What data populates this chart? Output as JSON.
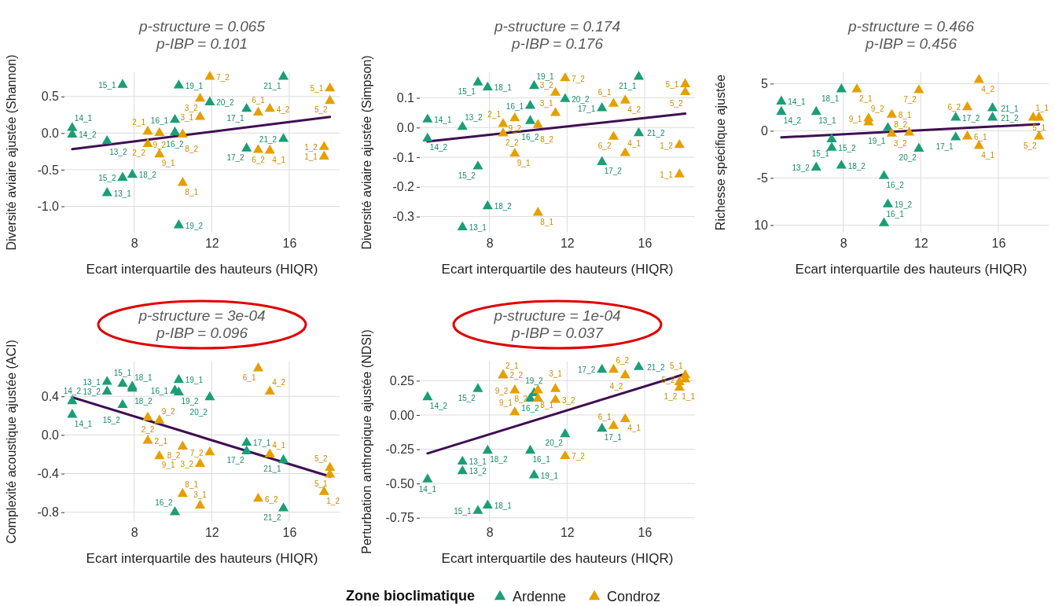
{
  "chart_data": [
    {
      "type": "scatter",
      "title": "p-structure = 0.065",
      "subtitle": "p-IBP = 0.101",
      "xlabel": "Ecart interquartile des hauteurs (HIQR)",
      "ylabel": "Diversité aviaire ajustée (Shannon)",
      "legend_title": "Zone bioclimatique",
      "legend": "bottom",
      "xlim": [
        4.4,
        18.6
      ],
      "ylim": [
        -1.36,
        0.83
      ],
      "xticks": [
        8,
        12,
        16
      ],
      "yticks": [
        {
          "value": -1,
          "label": "-1.0"
        },
        -0.5,
        {
          "value": 0,
          "label": "0.0"
        },
        0.5
      ],
      "grid": true,
      "marker": "triangle",
      "series": [
        {
          "name": "Ardenne",
          "color": "#1b9e77",
          "x": [
            6.6,
            6.6,
            4.8,
            4.8,
            7.4,
            7.4,
            10.1,
            10.1,
            13.8,
            13.8,
            7.9,
            10.3,
            10.3,
            11.9,
            15.7,
            15.7
          ],
          "values": [
            -0.82,
            -0.11,
            0.07,
            -0.02,
            0.66,
            -0.61,
            0.18,
            0.01,
            0.33,
            -0.21,
            -0.57,
            0.65,
            -1.26,
            0.42,
            0.77,
            -0.08
          ],
          "value_labels": [
            "13_1",
            "13_2",
            "14_1",
            "14_2",
            "15_1",
            "15_2",
            "16_1",
            "16_2",
            "17_1",
            "17_2",
            "18_2",
            "19_1",
            "19_2",
            "20_2",
            "21_1",
            "21_2"
          ]
        },
        {
          "name": "Condroz",
          "color": "#e69f00",
          "x": [
            17.8,
            17.8,
            8.7,
            8.7,
            11.4,
            11.4,
            15.0,
            15.0,
            18.1,
            18.1,
            14.4,
            14.4,
            11.9,
            10.5,
            10.5,
            9.3,
            9.3
          ],
          "values": [
            -0.32,
            -0.19,
            0.02,
            -0.15,
            0.22,
            0.47,
            -0.24,
            0.33,
            0.61,
            0.44,
            0.28,
            -0.23,
            0.77,
            -0.68,
            -0.02,
            -0.29,
            0.0
          ],
          "value_labels": [
            "1_1",
            "1_2",
            "2_1",
            "2_2",
            "3_1",
            "3_2",
            "4_1",
            "4_2",
            "5_1",
            "5_2",
            "6_1",
            "6_2",
            "7_2",
            "8_1",
            "8_2",
            "9_1",
            "9_2"
          ]
        },
        {
          "type": "line",
          "color": "#3f0f52",
          "x": [
            4.8,
            18.1
          ],
          "values": [
            -0.22,
            0.22
          ],
          "marker": "none"
        }
      ]
    },
    {
      "type": "scatter",
      "title": "p-structure = 0.174",
      "subtitle": "p-IBP = 0.176",
      "xlabel": "Ecart interquartile des hauteurs (HIQR)",
      "ylabel": "Diversité aviaire ajustée (Simpson)",
      "xlim": [
        4.4,
        18.6
      ],
      "ylim": [
        -0.354,
        0.186
      ],
      "xticks": [
        8,
        12,
        16
      ],
      "yticks": [
        -0.3,
        -0.2,
        -0.1,
        {
          "value": 0,
          "label": "0.0"
        },
        0.1
      ],
      "grid": true,
      "marker": "triangle",
      "series": [
        {
          "name": "Ardenne",
          "color": "#1b9e77",
          "x": [
            6.6,
            6.6,
            4.8,
            4.8,
            7.4,
            7.4,
            10.1,
            10.1,
            13.8,
            13.8,
            7.9,
            7.9,
            10.3,
            11.9,
            15.7,
            15.7
          ],
          "values": [
            -0.336,
            0.002,
            0.027,
            -0.037,
            0.152,
            -0.131,
            0.073,
            0.022,
            0.065,
            -0.116,
            0.135,
            -0.265,
            0.14,
            0.096,
            0.171,
            -0.019
          ],
          "value_labels": [
            "13_1",
            "13_2",
            "14_1",
            "14_2",
            "15_1",
            "15_2",
            "16_1",
            "16_2",
            "17_1",
            "17_2",
            "18_1",
            "18_2",
            "19_1",
            "20_2",
            "21_1",
            "21_2"
          ]
        },
        {
          "name": "Condroz",
          "color": "#e69f00",
          "x": [
            17.8,
            17.8,
            8.7,
            8.7,
            11.4,
            11.4,
            15.0,
            15.0,
            18.1,
            18.1,
            14.4,
            14.4,
            11.9,
            10.5,
            10.5,
            9.3,
            9.3
          ],
          "values": [
            -0.158,
            -0.059,
            0.012,
            -0.02,
            0.049,
            0.117,
            -0.086,
            0.091,
            0.146,
            0.119,
            0.08,
            -0.031,
            0.166,
            -0.287,
            0.009,
            -0.088,
            0.031
          ],
          "value_labels": [
            "1_1",
            "1_2",
            "2_1",
            "2_2",
            "3_1",
            "3_2",
            "4_1",
            "4_2",
            "5_1",
            "5_2",
            "6_1",
            "6_2",
            "7_2",
            "8_1",
            "8_2",
            "9_1",
            "9_2"
          ]
        },
        {
          "type": "line",
          "color": "#3f0f52",
          "x": [
            4.8,
            18.1
          ],
          "values": [
            -0.047,
            0.047
          ],
          "marker": "none"
        }
      ]
    },
    {
      "type": "scatter",
      "title": "p-structure = 0.466",
      "subtitle": "p-IBP = 0.456",
      "xlabel": "Ecart interquartile des hauteurs (HIQR)",
      "ylabel": "Richesse spécifique ajustée",
      "xlim": [
        4.4,
        18.6
      ],
      "ylim": [
        -10.8,
        6.2
      ],
      "xticks": [
        8,
        12,
        16
      ],
      "yticks": [
        {
          "value": -10,
          "label": "10"
        },
        -5,
        0,
        5
      ],
      "grid": true,
      "marker": "triangle",
      "series": [
        {
          "name": "Ardenne",
          "color": "#1b9e77",
          "x": [
            6.6,
            6.6,
            4.8,
            4.8,
            7.4,
            7.4,
            10.1,
            10.1,
            13.8,
            13.8,
            7.9,
            7.9,
            10.3,
            10.3,
            11.9,
            15.7,
            15.7
          ],
          "values": [
            2.0,
            -3.9,
            3.1,
            2.0,
            -0.9,
            -1.8,
            -9.8,
            -4.8,
            -0.7,
            1.4,
            4.4,
            -3.7,
            0.3,
            -7.8,
            -1.9,
            2.4,
            1.4
          ],
          "value_labels": [
            "13_1",
            "13_2",
            "14_1",
            "14_2",
            "15_1",
            "15_2",
            "16_1",
            "16_2",
            "17_1",
            "17_2",
            "18_1",
            "18_2",
            "19_1",
            "19_2",
            "20_2",
            "21_1",
            "21_2"
          ]
        },
        {
          "name": "Condroz",
          "color": "#e69f00",
          "x": [
            17.8,
            8.7,
            11.4,
            15.0,
            15.0,
            18.1,
            18.1,
            14.4,
            14.4,
            11.9,
            10.5,
            10.5,
            9.3,
            9.3
          ],
          "values": [
            1.4,
            4.4,
            -0.2,
            -1.6,
            5.4,
            1.4,
            -0.6,
            -0.6,
            2.5,
            4.3,
            1.7,
            -0.3,
            1.3,
            0.9
          ],
          "value_labels": [
            "1_1",
            "2_1",
            "3_2",
            "4_1",
            "4_2",
            "5_1",
            "5_2",
            "6_1",
            "6_2",
            "7_2",
            "8_1",
            "8_2",
            "9_1",
            "9_2"
          ]
        },
        {
          "type": "line",
          "color": "#3f0f52",
          "x": [
            4.8,
            18.1
          ],
          "values": [
            -0.7,
            0.7
          ],
          "marker": "none"
        }
      ]
    },
    {
      "type": "scatter",
      "title": "p-structure = 3e-04",
      "subtitle": "p-IBP = 0.096",
      "xlabel": "Ecart interquartile des hauteurs (HIQR)",
      "ylabel": "Complexité acoustique ajustée (ACI)",
      "xlim": [
        4.4,
        18.6
      ],
      "ylim": [
        -0.9,
        0.76
      ],
      "xticks": [
        8,
        12,
        16
      ],
      "yticks": [
        -0.8,
        -0.4,
        {
          "value": 0,
          "label": "0.0"
        },
        0.4
      ],
      "grid": true,
      "marker": "triangle",
      "series": [
        {
          "name": "Ardenne",
          "color": "#1b9e77",
          "x": [
            6.6,
            6.6,
            4.8,
            4.8,
            7.4,
            7.4,
            10.1,
            10.1,
            13.8,
            13.8,
            7.9,
            7.9,
            10.3,
            10.3,
            11.9,
            15.7,
            15.7
          ],
          "values": [
            0.55,
            0.45,
            0.21,
            0.35,
            0.53,
            0.31,
            0.46,
            -0.8,
            -0.08,
            -0.17,
            0.48,
            0.5,
            0.57,
            0.44,
            0.39,
            -0.26,
            -0.76
          ],
          "value_labels": [
            "13_1",
            "13_2",
            "14_1",
            "14_2",
            "15_1",
            "15_2",
            "16_1",
            "16_2",
            "17_1",
            "17_2",
            "18_1",
            "18_2",
            "19_1",
            "19_2",
            "20_2",
            "21_1",
            "21_2"
          ]
        },
        {
          "name": "Condroz",
          "color": "#e69f00",
          "x": [
            17.8,
            8.7,
            8.7,
            11.4,
            11.4,
            15.0,
            15.0,
            18.1,
            18.1,
            14.4,
            14.4,
            11.9,
            10.5,
            10.5,
            9.3,
            9.3
          ],
          "values": [
            -0.59,
            -0.06,
            0.18,
            -0.73,
            -0.3,
            -0.2,
            0.45,
            -0.41,
            -0.34,
            0.69,
            -0.66,
            -0.18,
            -0.61,
            -0.12,
            -0.22,
            0.15
          ],
          "value_labels": [
            "1_2",
            "2_1",
            "2_2",
            "3_1",
            "3_2",
            "4_1",
            "4_2",
            "5_1",
            "5_2",
            "6_1",
            "6_2",
            "7_2",
            "8_1",
            "8_2",
            "9_1",
            "9_2"
          ]
        },
        {
          "type": "line",
          "color": "#3f0f52",
          "x": [
            4.8,
            18.1
          ],
          "values": [
            0.39,
            -0.43
          ],
          "marker": "none"
        }
      ]
    },
    {
      "type": "scatter",
      "title": "p-structure = 1e-04",
      "subtitle": "p-IBP = 0.037",
      "xlabel": "Ecart interquartile des hauteurs (HIQR)",
      "ylabel": "Perturbation anthropique ajustée (NDSI)",
      "xlim": [
        4.4,
        18.6
      ],
      "ylim": [
        -0.78,
        0.39
      ],
      "xticks": [
        8,
        12,
        16
      ],
      "yticks": [
        -0.75,
        {
          "value": -0.5,
          "label": "-0.50"
        },
        -0.25,
        {
          "value": 0,
          "label": "0.00"
        },
        0.25
      ],
      "grid": true,
      "marker": "triangle",
      "series": [
        {
          "name": "Ardenne",
          "color": "#1b9e77",
          "x": [
            6.6,
            6.6,
            4.8,
            4.8,
            7.4,
            7.4,
            10.1,
            10.1,
            13.8,
            13.8,
            7.9,
            7.9,
            10.3,
            10.3,
            11.9,
            15.7
          ],
          "values": [
            -0.34,
            -0.41,
            -0.47,
            0.13,
            -0.7,
            0.19,
            -0.26,
            0.12,
            -0.1,
            0.33,
            -0.66,
            -0.26,
            -0.44,
            0.16,
            -0.14,
            0.35
          ],
          "value_labels": [
            "13_1",
            "13_2",
            "14_1",
            "14_2",
            "15_1",
            "15_2",
            "16_1",
            "16_2",
            "17_1",
            "17_2",
            "18_1",
            "18_2",
            "19_1",
            "19_2",
            "20_2",
            "21_2"
          ]
        },
        {
          "name": "Condroz",
          "color": "#e69f00",
          "x": [
            17.8,
            17.8,
            8.7,
            8.7,
            11.4,
            11.4,
            15.0,
            15.0,
            18.1,
            18.1,
            14.4,
            14.4,
            11.9,
            10.5,
            10.5,
            9.3,
            9.3
          ],
          "values": [
            0.2,
            0.24,
            0.29,
            0.29,
            0.19,
            0.11,
            -0.03,
            0.29,
            0.29,
            0.26,
            -0.08,
            0.33,
            -0.3,
            0.18,
            0.12,
            0.02,
            0.18
          ],
          "value_labels": [
            "1_1",
            "1_2",
            "2_1",
            "2_2",
            "3_1",
            "3_2",
            "4_1",
            "4_2",
            "5_1",
            "5_2",
            "6_1",
            "6_2",
            "7_2",
            "8_1",
            "8_2",
            "9_1",
            "9_2"
          ]
        },
        {
          "type": "line",
          "color": "#3f0f52",
          "x": [
            4.8,
            18.1
          ],
          "values": [
            -0.28,
            0.3
          ],
          "marker": "none"
        }
      ]
    }
  ]
}
